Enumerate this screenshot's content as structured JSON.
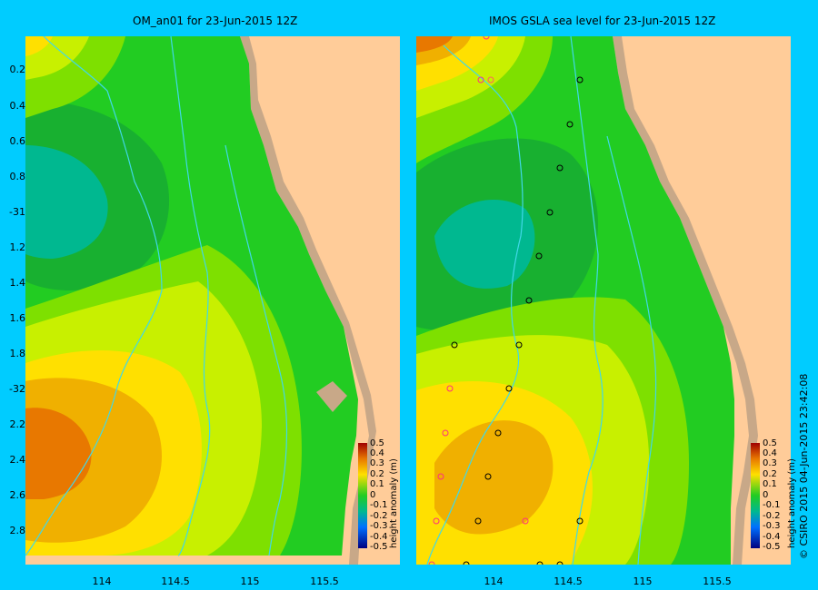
{
  "titles": {
    "left": "OM_an01  for 23-Jun-2015 12Z",
    "right": "IMOS GSLA sea level  for 23-Jun-2015 12Z"
  },
  "lat_labels": [
    "0.2",
    "0.4",
    "0.6",
    "0.8",
    "-31",
    "1.2",
    "1.4",
    "1.6",
    "1.8",
    "-32",
    "2.2",
    "2.4",
    "2.6",
    "2.8"
  ],
  "lon_labels": [
    "114",
    "114.5",
    "115",
    "115.5"
  ],
  "colorbar": {
    "unit": "height anomaly (m)",
    "ticks": [
      "0.5",
      "0.4",
      "0.3",
      "0.2",
      "0.1",
      "0",
      "-0.1",
      "-0.2",
      "-0.3",
      "-0.4",
      "-0.5"
    ]
  },
  "credit": "© CSIRO 2015   04-Jun-2015 23:42:08",
  "colors": {
    "background": "#00ccff",
    "land": "#ffcc99",
    "shelf": "#c8a888",
    "high": "#e87800",
    "mid_high": "#f0b000",
    "yellow": "#ffe000",
    "yellow_green": "#c8f000",
    "light_green": "#7ee000",
    "green": "#22cc22",
    "dark_green": "#18b030",
    "teal": "#00b890",
    "contour": "#40d8e8"
  }
}
